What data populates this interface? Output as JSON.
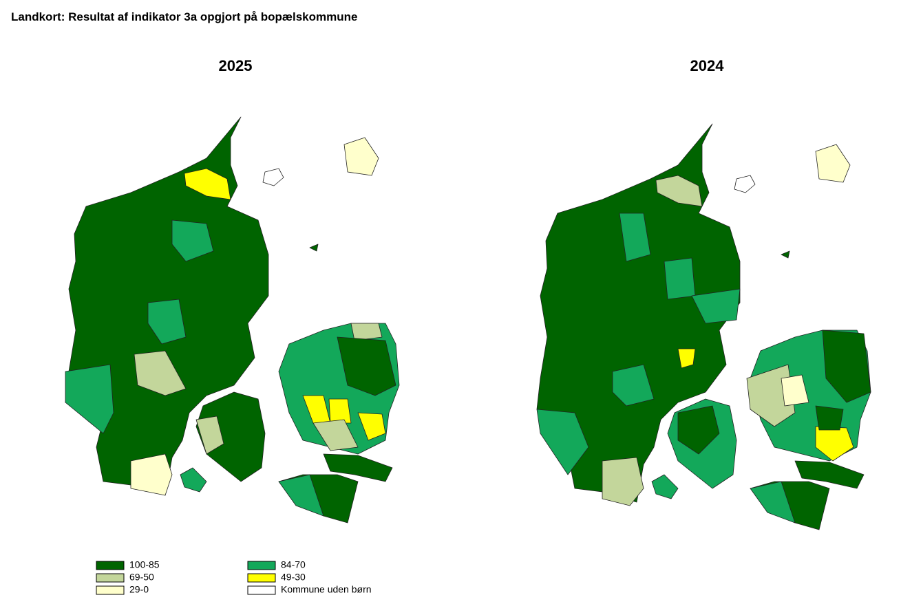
{
  "title": "Landkort: Resultat af indikator 3a opgjort på bopælskommune",
  "maps": [
    {
      "title": "2025"
    },
    {
      "title": "2024"
    }
  ],
  "legend": [
    {
      "label": "100-85",
      "color": "#006400"
    },
    {
      "label": "84-70",
      "color": "#13a85a"
    },
    {
      "label": "69-50",
      "color": "#c3d69b"
    },
    {
      "label": "49-30",
      "color": "#ffff00"
    },
    {
      "label": "29-0",
      "color": "#ffffcc"
    },
    {
      "label": "Kommune uden børn",
      "color": "#ffffff"
    }
  ]
}
